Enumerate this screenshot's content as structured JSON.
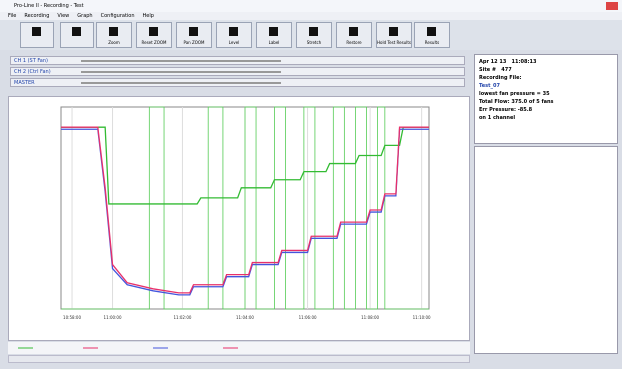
{
  "window": {
    "title": "Pro-Line II - Recording - Test"
  },
  "menu": [
    "File",
    "Recording",
    "View",
    "Graph",
    "Configuration",
    "Help"
  ],
  "toolbar": [
    "Zoom",
    "Reset ZOOM",
    "Pan ZOOM",
    "Level",
    "Label",
    "Stretch",
    "Restore",
    "Hold Test Results",
    "Results"
  ],
  "channels": [
    {
      "name": "CH 1 (ST Fan)"
    },
    {
      "name": "CH 2 (Ctrl Fan)"
    },
    {
      "name": "MASTER"
    }
  ],
  "info": {
    "date": "Apr 12 13",
    "time": "11:08:13",
    "site_label": "Site #",
    "site": "477",
    "file_label": "Recording File:",
    "file": "Test_07",
    "lines": [
      "lowest fan pressure = 35",
      "Total Flow: 375.0 of 5 fans",
      "Err Pressure: -85.8",
      "on 1 channel"
    ]
  },
  "chart": {
    "type": "line",
    "xlim": [
      0,
      100
    ],
    "ylim": [
      0,
      100
    ],
    "xticks": [
      {
        "value": 3,
        "label": "10:58:00"
      },
      {
        "value": 14,
        "label": "11:00:00"
      },
      {
        "value": 33,
        "label": "11:02:00"
      },
      {
        "value": 50,
        "label": "11:04:00"
      },
      {
        "value": 67,
        "label": "11:06:00"
      },
      {
        "value": 84,
        "label": "11:08:00"
      },
      {
        "value": 98,
        "label": "11:10:00"
      }
    ],
    "series": [
      {
        "color": "#33bb33",
        "x": [
          0,
          12,
          13,
          37,
          38,
          48,
          49,
          57,
          58,
          65,
          66,
          72,
          73,
          80,
          81,
          87,
          88,
          92,
          93,
          100
        ],
        "values": [
          90,
          90,
          52,
          52,
          55,
          55,
          60,
          60,
          64,
          64,
          68,
          68,
          72,
          72,
          76,
          76,
          81,
          81,
          90,
          90
        ]
      },
      {
        "color": "#e8306a",
        "x": [
          0,
          10,
          12,
          14,
          18,
          25,
          32,
          35,
          36,
          44,
          45,
          51,
          52,
          59,
          60,
          67,
          68,
          75,
          76,
          83,
          84,
          87,
          88,
          91,
          92,
          100
        ],
        "values": [
          90,
          90,
          60,
          22,
          13,
          10,
          8,
          8,
          12,
          12,
          17,
          17,
          23,
          23,
          29,
          29,
          36,
          36,
          43,
          43,
          49,
          49,
          57,
          57,
          90,
          90
        ]
      },
      {
        "color": "#4455dd",
        "x": [
          0,
          10,
          12,
          14,
          18,
          25,
          32,
          35,
          36,
          44,
          45,
          51,
          52,
          59,
          60,
          67,
          68,
          75,
          76,
          83,
          84,
          87,
          88,
          91,
          92,
          100
        ],
        "values": [
          89,
          89,
          58,
          20,
          12,
          9,
          7,
          7,
          11,
          11,
          16,
          16,
          22,
          22,
          28,
          28,
          35,
          35,
          42,
          42,
          48,
          48,
          56,
          56,
          89,
          89
        ]
      },
      {
        "color": "#55cc55",
        "x": [
          0,
          24,
          24,
          28,
          28,
          40,
          40,
          44,
          44,
          50,
          50,
          53,
          53,
          58,
          58,
          61,
          61,
          66,
          66,
          69,
          69,
          74,
          74,
          77,
          77,
          80,
          80,
          83,
          83,
          86,
          86,
          88,
          88,
          100
        ],
        "values": [
          0,
          0,
          100,
          100,
          0,
          0,
          100,
          100,
          0,
          0,
          100,
          100,
          0,
          0,
          100,
          100,
          0,
          0,
          100,
          100,
          0,
          0,
          100,
          100,
          0,
          0,
          100,
          100,
          0,
          0,
          100,
          100,
          0,
          0
        ]
      }
    ]
  }
}
